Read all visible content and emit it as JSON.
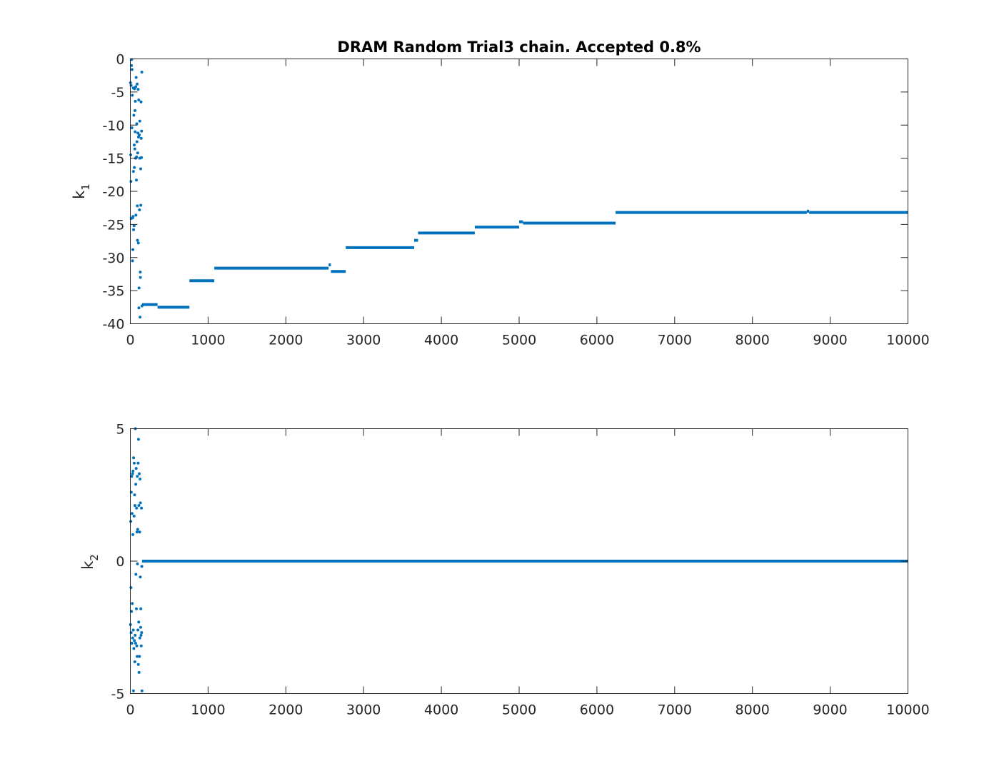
{
  "chart_data": [
    {
      "type": "scatter",
      "title": "DRAM Random Trial3 chain. Accepted 0.8%",
      "xlabel": "",
      "ylabel": "k",
      "ylabel_subscript": "1",
      "xlim": [
        0,
        10000
      ],
      "ylim": [
        -40,
        0
      ],
      "xticks": [
        0,
        1000,
        2000,
        3000,
        4000,
        5000,
        6000,
        7000,
        8000,
        9000,
        10000
      ],
      "yticks": [
        0,
        -5,
        -10,
        -15,
        -20,
        -25,
        -30,
        -35,
        -40
      ],
      "grid": false,
      "marker_color": "#0072bd",
      "burnin_points": {
        "x": [
          2,
          5,
          8,
          10,
          12,
          15,
          18,
          20,
          22,
          25,
          28,
          30,
          33,
          35,
          38,
          40,
          42,
          45,
          48,
          50,
          52,
          55,
          58,
          60,
          62,
          65,
          68,
          70,
          72,
          75,
          78,
          80,
          83,
          85,
          88,
          90,
          92,
          95,
          98,
          100,
          103,
          105,
          108,
          110,
          112,
          115,
          118,
          120,
          122,
          125,
          128,
          130,
          133,
          135,
          138,
          140,
          143,
          145,
          148,
          150
        ],
        "y": [
          -3.6,
          -14.5,
          -18.5,
          -4.0,
          -24.1,
          -1.0,
          -0.1,
          -10.4,
          -1.6,
          -5.5,
          -30.5,
          -24.0,
          -28.8,
          -23.8,
          -4.4,
          -17.0,
          -25.8,
          -8.5,
          -25.2,
          -13.0,
          -16.4,
          -4.5,
          -13.6,
          -7.8,
          -11.0,
          -6.4,
          -15.0,
          -4.2,
          -23.6,
          -2.8,
          -18.3,
          -14.8,
          -9.8,
          -12.5,
          -3.8,
          -22.2,
          -27.4,
          -14.2,
          -11.2,
          -4.6,
          -27.8,
          -11.8,
          -6.2,
          -37.6,
          -34.6,
          -11.5,
          -22.8,
          -15.0,
          -9.4,
          -39.0,
          -32.2,
          -33.0,
          -16.6,
          -22.1,
          -6.5,
          -12.0,
          -14.9,
          -10.9,
          -2.0,
          -37.3
        ]
      },
      "segments": [
        {
          "x_start": 150,
          "x_end": 350,
          "y": -37.1
        },
        {
          "x_start": 350,
          "x_end": 760,
          "y": -37.5
        },
        {
          "x_start": 760,
          "x_end": 1080,
          "y": -33.5
        },
        {
          "x_start": 1080,
          "x_end": 2550,
          "y": -31.6
        },
        {
          "x_start": 2550,
          "x_end": 2580,
          "y": -31.1
        },
        {
          "x_start": 2580,
          "x_end": 2770,
          "y": -32.1
        },
        {
          "x_start": 2770,
          "x_end": 3650,
          "y": -28.5
        },
        {
          "x_start": 3650,
          "x_end": 3700,
          "y": -27.4
        },
        {
          "x_start": 3700,
          "x_end": 4430,
          "y": -26.3
        },
        {
          "x_start": 4430,
          "x_end": 5000,
          "y": -25.4
        },
        {
          "x_start": 5000,
          "x_end": 5050,
          "y": -24.6
        },
        {
          "x_start": 5050,
          "x_end": 6240,
          "y": -24.8
        },
        {
          "x_start": 6240,
          "x_end": 8700,
          "y": -23.2
        },
        {
          "x_start": 8700,
          "x_end": 8730,
          "y": -23.0
        },
        {
          "x_start": 8730,
          "x_end": 10000,
          "y": -23.2
        }
      ]
    },
    {
      "type": "scatter",
      "title": "",
      "xlabel": "",
      "ylabel": "k",
      "ylabel_subscript": "2",
      "xlim": [
        0,
        10000
      ],
      "ylim": [
        -5,
        5
      ],
      "xticks": [
        0,
        1000,
        2000,
        3000,
        4000,
        5000,
        6000,
        7000,
        8000,
        9000,
        10000
      ],
      "yticks": [
        5,
        0,
        -5
      ],
      "grid": false,
      "marker_color": "#0072bd",
      "burnin_points": {
        "x": [
          2,
          5,
          8,
          10,
          12,
          15,
          18,
          20,
          22,
          25,
          28,
          30,
          33,
          35,
          38,
          40,
          42,
          45,
          48,
          50,
          52,
          55,
          58,
          60,
          62,
          65,
          68,
          70,
          72,
          75,
          78,
          80,
          83,
          85,
          88,
          90,
          92,
          95,
          98,
          100,
          103,
          105,
          108,
          110,
          112,
          115,
          118,
          120,
          122,
          125,
          128,
          130,
          133,
          135,
          138,
          140,
          143,
          145,
          148,
          150
        ],
        "y": [
          -2.4,
          1.5,
          -1.0,
          -2.7,
          2.6,
          -1.9,
          3.2,
          -3.1,
          1.8,
          -1.6,
          3.3,
          -2.9,
          1.0,
          3.4,
          -2.6,
          -4.9,
          3.9,
          -3.3,
          1.7,
          3.7,
          -3.0,
          2.5,
          -3.8,
          2.1,
          -2.8,
          5.0,
          -3.1,
          2.9,
          -0.5,
          3.5,
          -1.8,
          2.0,
          -3.2,
          1.1,
          -3.6,
          3.2,
          -0.1,
          1.2,
          -2.6,
          3.7,
          -3.9,
          4.6,
          -2.3,
          2.1,
          -4.2,
          3.3,
          -3.6,
          1.1,
          -2.9,
          3.1,
          -0.6,
          2.2,
          -2.5,
          -1.8,
          -2.8,
          -3.2,
          2.0,
          -2.7,
          -0.2,
          -4.9
        ]
      },
      "segments": [
        {
          "x_start": 150,
          "x_end": 10000,
          "y": 0.0
        }
      ]
    }
  ]
}
